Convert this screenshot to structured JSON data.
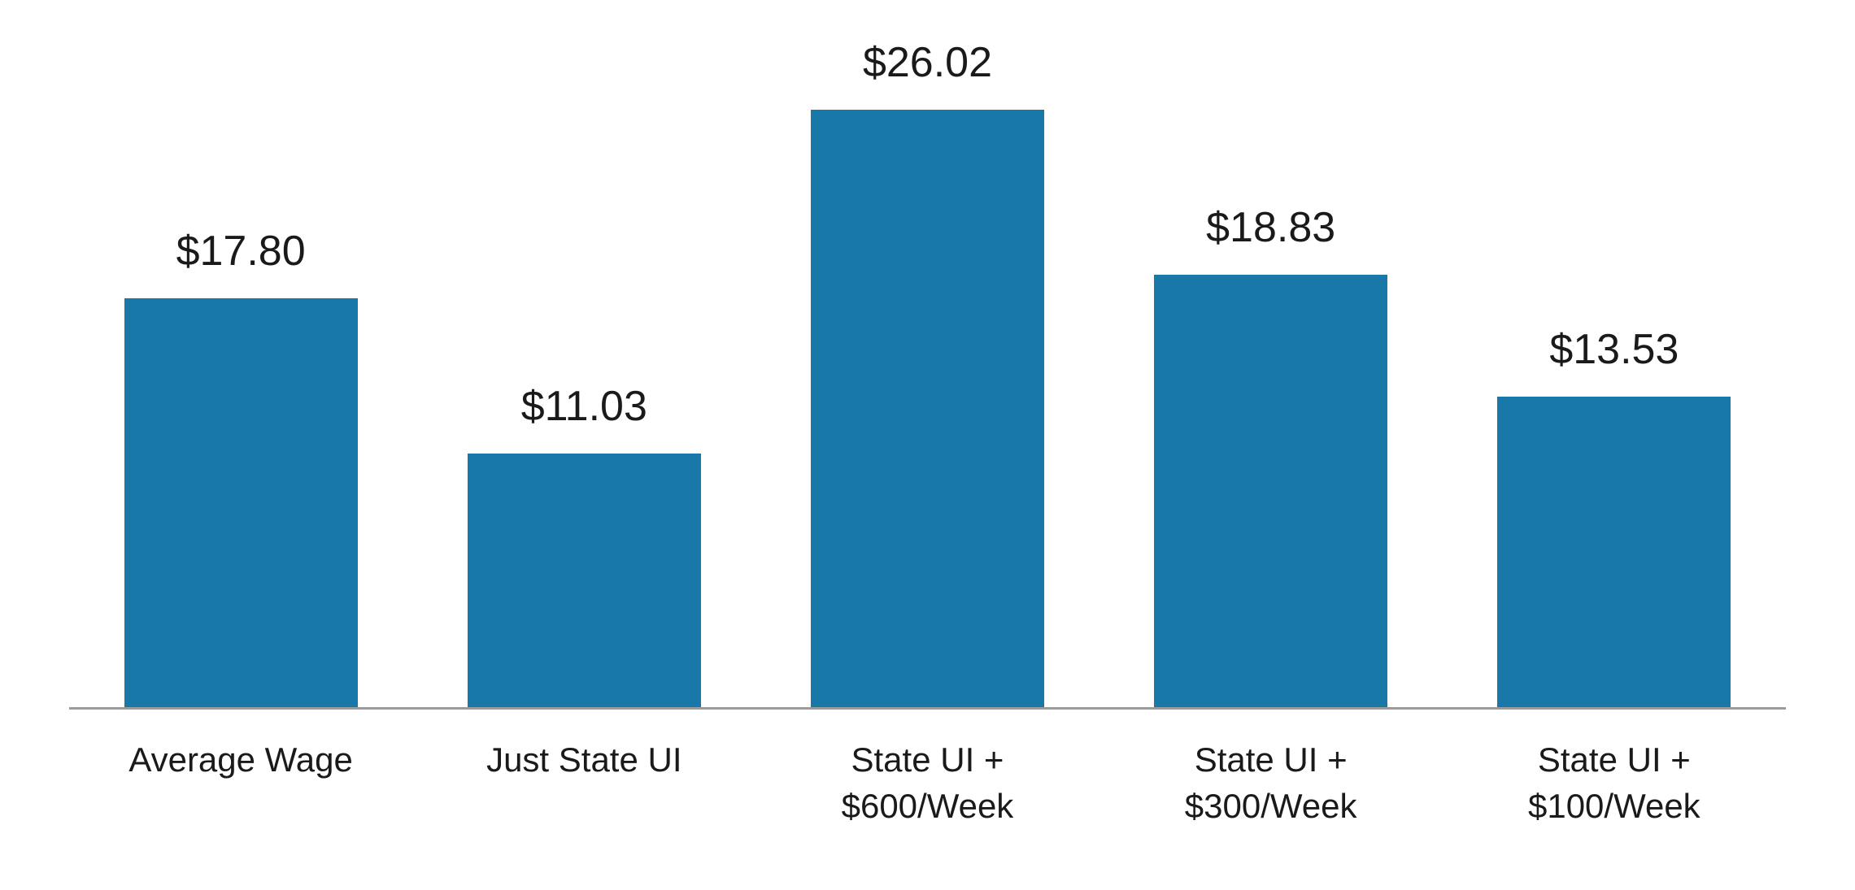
{
  "chart_data": {
    "type": "bar",
    "title": "",
    "xlabel": "",
    "ylabel": "",
    "categories": [
      "Average Wage",
      "Just State UI",
      "State UI +\n$600/Week",
      "State UI +\n$300/Week",
      "State UI +\n$100/Week"
    ],
    "values": [
      17.8,
      11.03,
      26.02,
      18.83,
      13.53
    ],
    "value_labels": [
      "$17.80",
      "$11.03",
      "$26.02",
      "$18.83",
      "$13.53"
    ],
    "ylim": [
      0,
      28
    ],
    "grid": false,
    "legend": false,
    "y_axis_visible": false,
    "bar_color": "#1878a8",
    "axis_line_color": "#9b9b9b",
    "label_color": "#1a1a1a",
    "background": "#ffffff"
  }
}
